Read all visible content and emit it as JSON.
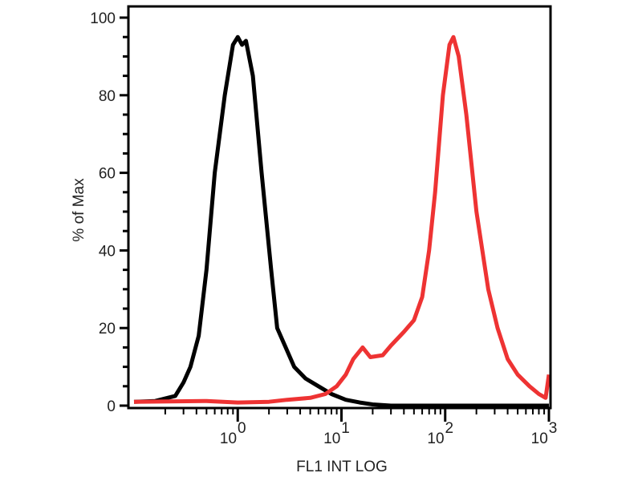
{
  "chart_data": {
    "type": "line",
    "title": "",
    "xlabel": "FL1 INT LOG",
    "ylabel": "% of Max",
    "x_scale": "log",
    "xlim": [
      0.1,
      1000
    ],
    "ylim": [
      0,
      100
    ],
    "x_ticks": [
      {
        "value": 1,
        "base": "10",
        "exp": "0"
      },
      {
        "value": 10,
        "base": "10",
        "exp": "1"
      },
      {
        "value": 100,
        "base": "10",
        "exp": "2"
      },
      {
        "value": 1000,
        "base": "10",
        "exp": "3"
      }
    ],
    "y_ticks": [
      "0",
      "20",
      "40",
      "60",
      "80",
      "100"
    ],
    "grid": false,
    "series": [
      {
        "color": "#000000",
        "points": [
          [
            0.1,
            1
          ],
          [
            0.16,
            1.2
          ],
          [
            0.25,
            2.5
          ],
          [
            0.3,
            6
          ],
          [
            0.35,
            10
          ],
          [
            0.42,
            18
          ],
          [
            0.5,
            35
          ],
          [
            0.6,
            60
          ],
          [
            0.75,
            80
          ],
          [
            0.9,
            93
          ],
          [
            1.0,
            95
          ],
          [
            1.1,
            93
          ],
          [
            1.2,
            94
          ],
          [
            1.4,
            85
          ],
          [
            1.7,
            60
          ],
          [
            2.1,
            35
          ],
          [
            2.4,
            20
          ],
          [
            2.9,
            15
          ],
          [
            3.5,
            10
          ],
          [
            4.5,
            7
          ],
          [
            6,
            5
          ],
          [
            8,
            3
          ],
          [
            11,
            1.5
          ],
          [
            15,
            0.8
          ],
          [
            20,
            0.3
          ],
          [
            30,
            0
          ],
          [
            1000,
            0
          ]
        ]
      },
      {
        "color": "#ee3333",
        "points": [
          [
            0.1,
            1
          ],
          [
            0.5,
            1.2
          ],
          [
            1,
            0.8
          ],
          [
            2,
            1
          ],
          [
            3,
            1.5
          ],
          [
            5,
            2
          ],
          [
            7,
            3
          ],
          [
            9,
            5
          ],
          [
            11,
            8
          ],
          [
            13,
            12
          ],
          [
            16,
            15
          ],
          [
            19,
            12.5
          ],
          [
            25,
            13
          ],
          [
            30,
            15.5
          ],
          [
            40,
            19
          ],
          [
            50,
            22
          ],
          [
            60,
            28
          ],
          [
            70,
            40
          ],
          [
            80,
            55
          ],
          [
            95,
            80
          ],
          [
            110,
            93
          ],
          [
            120,
            95
          ],
          [
            135,
            90
          ],
          [
            160,
            75
          ],
          [
            200,
            50
          ],
          [
            260,
            30
          ],
          [
            320,
            20
          ],
          [
            400,
            12
          ],
          [
            500,
            8
          ],
          [
            650,
            5
          ],
          [
            800,
            3
          ],
          [
            930,
            2
          ],
          [
            1000,
            8
          ]
        ]
      }
    ]
  }
}
